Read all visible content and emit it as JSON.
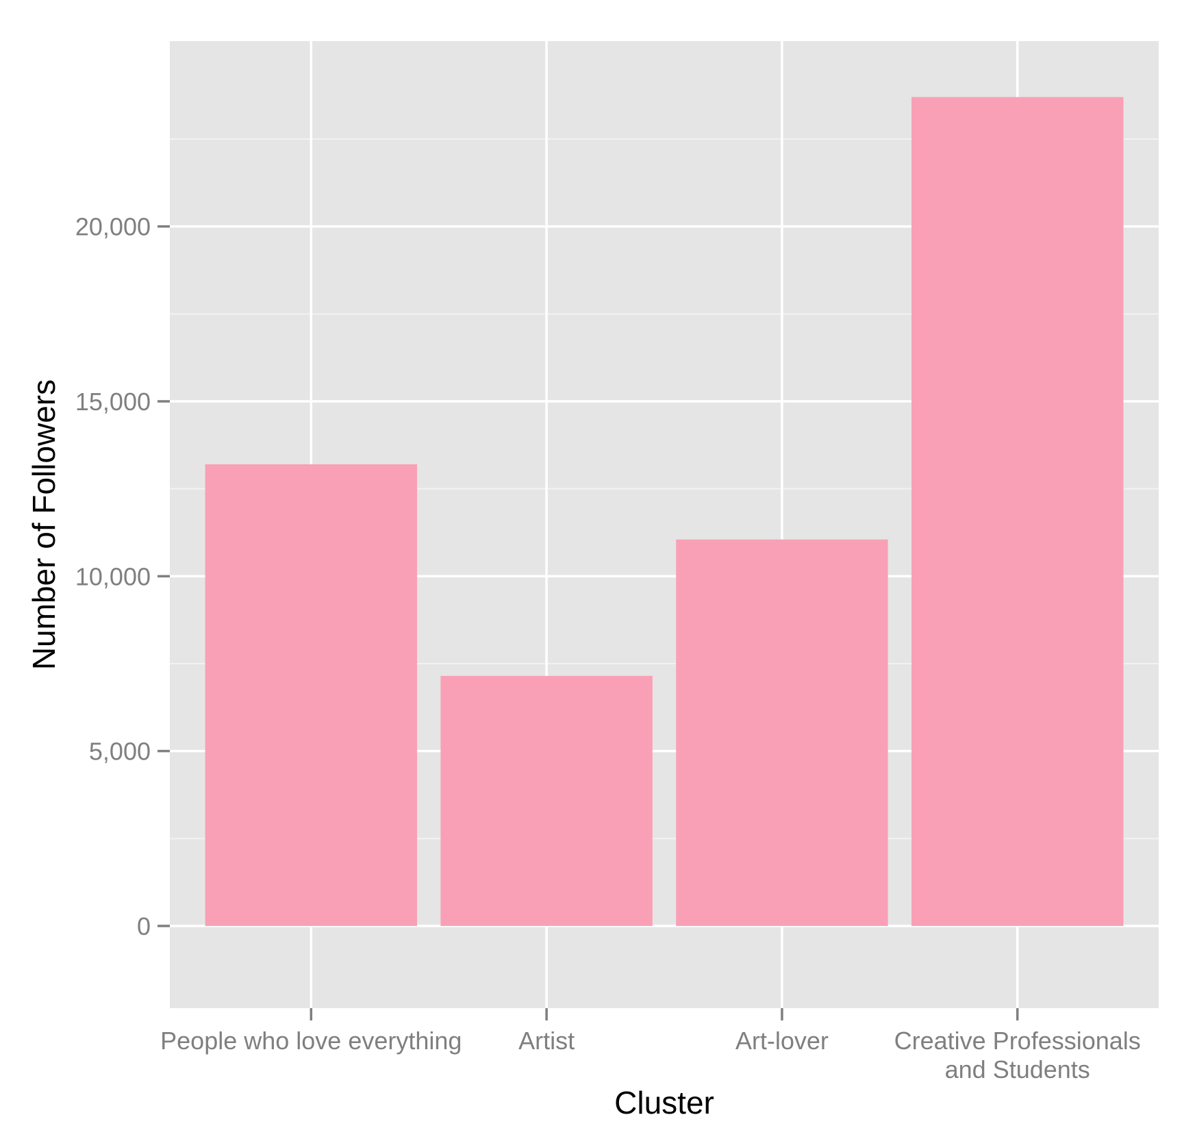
{
  "chart_data": {
    "type": "bar",
    "categories": [
      [
        "People who love everything"
      ],
      [
        "Artist"
      ],
      [
        "Art-lover"
      ],
      [
        "Creative Professionals",
        "and Students"
      ]
    ],
    "values": [
      13200,
      7150,
      11050,
      23700
    ],
    "xlabel": "Cluster",
    "ylabel": "Number of Followers",
    "ylim": [
      -2350,
      25300
    ],
    "yticks": [
      0,
      5000,
      10000,
      15000,
      20000
    ],
    "ytick_labels": [
      "0",
      "5,000",
      "10,000",
      "15,000",
      "20,000"
    ],
    "grid": true,
    "legend": "none",
    "colors": {
      "bar": "#f9a0b6",
      "panel": "#e5e5e5",
      "grid_major": "#ffffff",
      "grid_minor": "#f2f2f2",
      "tick_text": "#7f7f7f",
      "title_text": "#000000"
    }
  }
}
